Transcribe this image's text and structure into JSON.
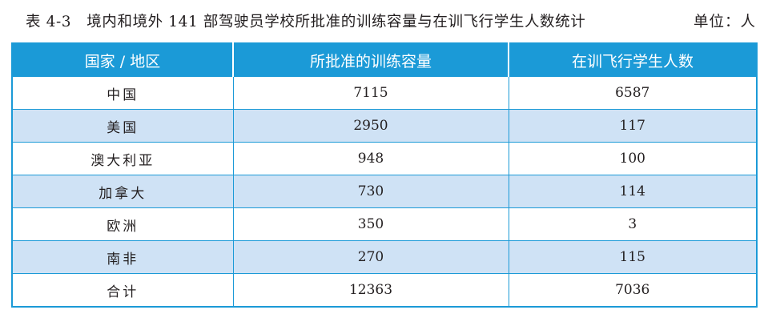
{
  "caption": {
    "title": "表 4-3　境内和境外 141 部驾驶员学校所批准的训练容量与在训飞行学生人数统计",
    "unit": "单位：人"
  },
  "table": {
    "headers": [
      "国家 / 地区",
      "所批准的训练容量",
      "在训飞行学生人数"
    ],
    "rows": [
      [
        "中国",
        "7115",
        "6587"
      ],
      [
        "美国",
        "2950",
        "117"
      ],
      [
        "澳大利亚",
        "948",
        "100"
      ],
      [
        "加拿大",
        "730",
        "114"
      ],
      [
        "欧洲",
        "350",
        "3"
      ],
      [
        "南非",
        "270",
        "115"
      ],
      [
        "合计",
        "12363",
        "7036"
      ]
    ]
  },
  "colors": {
    "header_bg": "#1b9ad7",
    "stripe_bg": "#cfe2f5",
    "border": "#1b9ad7"
  }
}
